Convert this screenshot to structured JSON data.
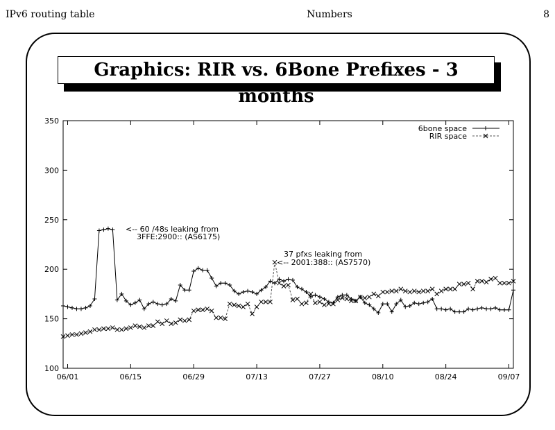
{
  "header": {
    "left": "IPv6 routing table",
    "center": "Numbers",
    "right": "8"
  },
  "chart_data": {
    "type": "line",
    "title": "Graphics: RIR vs. 6Bone Prefixes - 3 months",
    "xlabel": "",
    "ylabel": "",
    "ylim": [
      100,
      350
    ],
    "yticks": [
      100,
      150,
      200,
      250,
      300,
      350
    ],
    "xlim": [
      "2000-05-31",
      "2000-09-08"
    ],
    "xticks": [
      {
        "date": "2000-06-01",
        "label": "06/01"
      },
      {
        "date": "2000-06-15",
        "label": "06/15"
      },
      {
        "date": "2000-06-29",
        "label": "06/29"
      },
      {
        "date": "2000-07-13",
        "label": "07/13"
      },
      {
        "date": "2000-07-27",
        "label": "07/27"
      },
      {
        "date": "2000-08-10",
        "label": "08/10"
      },
      {
        "date": "2000-08-24",
        "label": "08/24"
      },
      {
        "date": "2000-09-07",
        "label": "09/07"
      }
    ],
    "grid": false,
    "legend_position": "top-right",
    "series": [
      {
        "name": "6bone space",
        "color": "#000000",
        "marker": "plus",
        "line_style": "solid",
        "points": [
          [
            "2000-05-31",
            163
          ],
          [
            "2000-06-01",
            162
          ],
          [
            "2000-06-02",
            161
          ],
          [
            "2000-06-03",
            160
          ],
          [
            "2000-06-04",
            160
          ],
          [
            "2000-06-05",
            161
          ],
          [
            "2000-06-06",
            163
          ],
          [
            "2000-06-07",
            170
          ],
          [
            "2000-06-08",
            239
          ],
          [
            "2000-06-09",
            240
          ],
          [
            "2000-06-10",
            241
          ],
          [
            "2000-06-11",
            240
          ],
          [
            "2000-06-12",
            169
          ],
          [
            "2000-06-13",
            175
          ],
          [
            "2000-06-14",
            168
          ],
          [
            "2000-06-15",
            164
          ],
          [
            "2000-06-16",
            166
          ],
          [
            "2000-06-17",
            169
          ],
          [
            "2000-06-18",
            160
          ],
          [
            "2000-06-19",
            165
          ],
          [
            "2000-06-20",
            167
          ],
          [
            "2000-06-21",
            165
          ],
          [
            "2000-06-22",
            164
          ],
          [
            "2000-06-23",
            165
          ],
          [
            "2000-06-24",
            170
          ],
          [
            "2000-06-25",
            168
          ],
          [
            "2000-06-26",
            184
          ],
          [
            "2000-06-27",
            179
          ],
          [
            "2000-06-28",
            179
          ],
          [
            "2000-06-29",
            198
          ],
          [
            "2000-06-30",
            201
          ],
          [
            "2000-07-01",
            199
          ],
          [
            "2000-07-02",
            199
          ],
          [
            "2000-07-03",
            191
          ],
          [
            "2000-07-04",
            183
          ],
          [
            "2000-07-05",
            186
          ],
          [
            "2000-07-06",
            186
          ],
          [
            "2000-07-07",
            184
          ],
          [
            "2000-07-08",
            178
          ],
          [
            "2000-07-09",
            175
          ],
          [
            "2000-07-10",
            177
          ],
          [
            "2000-07-11",
            178
          ],
          [
            "2000-07-12",
            177
          ],
          [
            "2000-07-13",
            175
          ],
          [
            "2000-07-14",
            179
          ],
          [
            "2000-07-15",
            182
          ],
          [
            "2000-07-16",
            188
          ],
          [
            "2000-07-17",
            186
          ],
          [
            "2000-07-18",
            190
          ],
          [
            "2000-07-19",
            188
          ],
          [
            "2000-07-20",
            190
          ],
          [
            "2000-07-21",
            189
          ],
          [
            "2000-07-22",
            182
          ],
          [
            "2000-07-23",
            180
          ],
          [
            "2000-07-24",
            177
          ],
          [
            "2000-07-25",
            172
          ],
          [
            "2000-07-26",
            174
          ],
          [
            "2000-07-27",
            172
          ],
          [
            "2000-07-28",
            170
          ],
          [
            "2000-07-29",
            167
          ],
          [
            "2000-07-30",
            166
          ],
          [
            "2000-07-31",
            172
          ],
          [
            "2000-08-01",
            174
          ],
          [
            "2000-08-02",
            174
          ],
          [
            "2000-08-03",
            170
          ],
          [
            "2000-08-04",
            168
          ],
          [
            "2000-08-05",
            172
          ],
          [
            "2000-08-06",
            166
          ],
          [
            "2000-08-07",
            164
          ],
          [
            "2000-08-08",
            160
          ],
          [
            "2000-08-09",
            156
          ],
          [
            "2000-08-10",
            165
          ],
          [
            "2000-08-11",
            165
          ],
          [
            "2000-08-12",
            157
          ],
          [
            "2000-08-13",
            165
          ],
          [
            "2000-08-14",
            169
          ],
          [
            "2000-08-15",
            162
          ],
          [
            "2000-08-16",
            163
          ],
          [
            "2000-08-17",
            166
          ],
          [
            "2000-08-18",
            165
          ],
          [
            "2000-08-19",
            166
          ],
          [
            "2000-08-20",
            167
          ],
          [
            "2000-08-21",
            170
          ],
          [
            "2000-08-22",
            160
          ],
          [
            "2000-08-23",
            160
          ],
          [
            "2000-08-24",
            159
          ],
          [
            "2000-08-25",
            160
          ],
          [
            "2000-08-26",
            157
          ],
          [
            "2000-08-27",
            157
          ],
          [
            "2000-08-28",
            157
          ],
          [
            "2000-08-29",
            160
          ],
          [
            "2000-08-30",
            159
          ],
          [
            "2000-08-31",
            160
          ],
          [
            "2000-09-01",
            161
          ],
          [
            "2000-09-02",
            160
          ],
          [
            "2000-09-03",
            160
          ],
          [
            "2000-09-04",
            161
          ],
          [
            "2000-09-05",
            159
          ],
          [
            "2000-09-06",
            159
          ],
          [
            "2000-09-07",
            159
          ],
          [
            "2000-09-08",
            179
          ],
          [
            "2000-09-09",
            179
          ]
        ]
      },
      {
        "name": "RIR space",
        "color": "#000000",
        "marker": "x",
        "line_style": "dashed",
        "points": [
          [
            "2000-05-31",
            132
          ],
          [
            "2000-06-01",
            133
          ],
          [
            "2000-06-02",
            134
          ],
          [
            "2000-06-03",
            134
          ],
          [
            "2000-06-04",
            135
          ],
          [
            "2000-06-05",
            136
          ],
          [
            "2000-06-06",
            137
          ],
          [
            "2000-06-07",
            139
          ],
          [
            "2000-06-08",
            139
          ],
          [
            "2000-06-09",
            140
          ],
          [
            "2000-06-10",
            140
          ],
          [
            "2000-06-11",
            141
          ],
          [
            "2000-06-12",
            139
          ],
          [
            "2000-06-13",
            139
          ],
          [
            "2000-06-14",
            140
          ],
          [
            "2000-06-15",
            141
          ],
          [
            "2000-06-16",
            143
          ],
          [
            "2000-06-17",
            142
          ],
          [
            "2000-06-18",
            141
          ],
          [
            "2000-06-19",
            143
          ],
          [
            "2000-06-20",
            143
          ],
          [
            "2000-06-21",
            147
          ],
          [
            "2000-06-22",
            145
          ],
          [
            "2000-06-23",
            148
          ],
          [
            "2000-06-24",
            145
          ],
          [
            "2000-06-25",
            146
          ],
          [
            "2000-06-26",
            149
          ],
          [
            "2000-06-27",
            148
          ],
          [
            "2000-06-28",
            149
          ],
          [
            "2000-06-29",
            158
          ],
          [
            "2000-06-30",
            159
          ],
          [
            "2000-07-01",
            159
          ],
          [
            "2000-07-02",
            160
          ],
          [
            "2000-07-03",
            158
          ],
          [
            "2000-07-04",
            151
          ],
          [
            "2000-07-05",
            151
          ],
          [
            "2000-07-06",
            150
          ],
          [
            "2000-07-07",
            165
          ],
          [
            "2000-07-08",
            164
          ],
          [
            "2000-07-09",
            163
          ],
          [
            "2000-07-10",
            162
          ],
          [
            "2000-07-11",
            165
          ],
          [
            "2000-07-12",
            155
          ],
          [
            "2000-07-13",
            162
          ],
          [
            "2000-07-14",
            167
          ],
          [
            "2000-07-15",
            167
          ],
          [
            "2000-07-16",
            167
          ],
          [
            "2000-07-17",
            207
          ],
          [
            "2000-07-18",
            186
          ],
          [
            "2000-07-19",
            183
          ],
          [
            "2000-07-20",
            184
          ],
          [
            "2000-07-21",
            169
          ],
          [
            "2000-07-22",
            170
          ],
          [
            "2000-07-23",
            165
          ],
          [
            "2000-07-24",
            166
          ],
          [
            "2000-07-25",
            175
          ],
          [
            "2000-07-26",
            166
          ],
          [
            "2000-07-27",
            167
          ],
          [
            "2000-07-28",
            164
          ],
          [
            "2000-07-29",
            165
          ],
          [
            "2000-07-30",
            165
          ],
          [
            "2000-07-31",
            169
          ],
          [
            "2000-08-01",
            171
          ],
          [
            "2000-08-02",
            170
          ],
          [
            "2000-08-03",
            168
          ],
          [
            "2000-08-04",
            168
          ],
          [
            "2000-08-05",
            172
          ],
          [
            "2000-08-06",
            171
          ],
          [
            "2000-08-07",
            172
          ],
          [
            "2000-08-08",
            175
          ],
          [
            "2000-08-09",
            173
          ],
          [
            "2000-08-10",
            177
          ],
          [
            "2000-08-11",
            177
          ],
          [
            "2000-08-12",
            178
          ],
          [
            "2000-08-13",
            178
          ],
          [
            "2000-08-14",
            180
          ],
          [
            "2000-08-15",
            178
          ],
          [
            "2000-08-16",
            177
          ],
          [
            "2000-08-17",
            178
          ],
          [
            "2000-08-18",
            177
          ],
          [
            "2000-08-19",
            178
          ],
          [
            "2000-08-20",
            178
          ],
          [
            "2000-08-21",
            180
          ],
          [
            "2000-08-22",
            175
          ],
          [
            "2000-08-23",
            178
          ],
          [
            "2000-08-24",
            180
          ],
          [
            "2000-08-25",
            180
          ],
          [
            "2000-08-26",
            180
          ],
          [
            "2000-08-27",
            185
          ],
          [
            "2000-08-28",
            185
          ],
          [
            "2000-08-29",
            186
          ],
          [
            "2000-08-30",
            180
          ],
          [
            "2000-08-31",
            188
          ],
          [
            "2000-09-01",
            188
          ],
          [
            "2000-09-02",
            187
          ],
          [
            "2000-09-03",
            190
          ],
          [
            "2000-09-04",
            191
          ],
          [
            "2000-09-05",
            186
          ],
          [
            "2000-09-06",
            186
          ],
          [
            "2000-09-07",
            186
          ],
          [
            "2000-09-08",
            188
          ],
          [
            "2000-09-09",
            188
          ]
        ]
      }
    ],
    "annotations": [
      {
        "lines": [
          "<-- 60 /48s leaking from",
          "3FFE:2900:: (AS6175)"
        ],
        "date": "2000-06-14",
        "value": 240
      },
      {
        "lines": [
          "37 pfxs leaking from",
          "<-- 2001:388:: (AS7570)"
        ],
        "date": "2000-07-18",
        "value": 206
      }
    ]
  }
}
